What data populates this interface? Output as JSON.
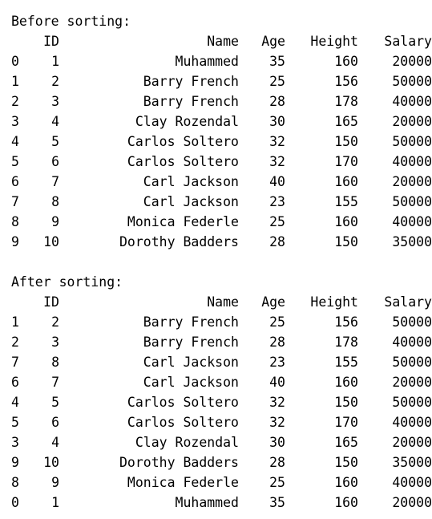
{
  "before": {
    "caption": "Before sorting:",
    "columns": {
      "id": "ID",
      "name": "Name",
      "age": "Age",
      "height": "Height",
      "salary": "Salary"
    },
    "rows": [
      {
        "idx": "0",
        "id": "1",
        "name": "Muhammed",
        "age": "35",
        "height": "160",
        "salary": "20000"
      },
      {
        "idx": "1",
        "id": "2",
        "name": "Barry French",
        "age": "25",
        "height": "156",
        "salary": "50000"
      },
      {
        "idx": "2",
        "id": "3",
        "name": "Barry French",
        "age": "28",
        "height": "178",
        "salary": "40000"
      },
      {
        "idx": "3",
        "id": "4",
        "name": "Clay Rozendal",
        "age": "30",
        "height": "165",
        "salary": "20000"
      },
      {
        "idx": "4",
        "id": "5",
        "name": "Carlos Soltero",
        "age": "32",
        "height": "150",
        "salary": "50000"
      },
      {
        "idx": "5",
        "id": "6",
        "name": "Carlos Soltero",
        "age": "32",
        "height": "170",
        "salary": "40000"
      },
      {
        "idx": "6",
        "id": "7",
        "name": "Carl Jackson",
        "age": "40",
        "height": "160",
        "salary": "20000"
      },
      {
        "idx": "7",
        "id": "8",
        "name": "Carl Jackson",
        "age": "23",
        "height": "155",
        "salary": "50000"
      },
      {
        "idx": "8",
        "id": "9",
        "name": "Monica Federle",
        "age": "25",
        "height": "160",
        "salary": "40000"
      },
      {
        "idx": "9",
        "id": "10",
        "name": "Dorothy Badders",
        "age": "28",
        "height": "150",
        "salary": "35000"
      }
    ]
  },
  "after": {
    "caption": "After sorting:",
    "columns": {
      "id": "ID",
      "name": "Name",
      "age": "Age",
      "height": "Height",
      "salary": "Salary"
    },
    "rows": [
      {
        "idx": "1",
        "id": "2",
        "name": "Barry French",
        "age": "25",
        "height": "156",
        "salary": "50000"
      },
      {
        "idx": "2",
        "id": "3",
        "name": "Barry French",
        "age": "28",
        "height": "178",
        "salary": "40000"
      },
      {
        "idx": "7",
        "id": "8",
        "name": "Carl Jackson",
        "age": "23",
        "height": "155",
        "salary": "50000"
      },
      {
        "idx": "6",
        "id": "7",
        "name": "Carl Jackson",
        "age": "40",
        "height": "160",
        "salary": "20000"
      },
      {
        "idx": "4",
        "id": "5",
        "name": "Carlos Soltero",
        "age": "32",
        "height": "150",
        "salary": "50000"
      },
      {
        "idx": "5",
        "id": "6",
        "name": "Carlos Soltero",
        "age": "32",
        "height": "170",
        "salary": "40000"
      },
      {
        "idx": "3",
        "id": "4",
        "name": "Clay Rozendal",
        "age": "30",
        "height": "165",
        "salary": "20000"
      },
      {
        "idx": "9",
        "id": "10",
        "name": "Dorothy Badders",
        "age": "28",
        "height": "150",
        "salary": "35000"
      },
      {
        "idx": "8",
        "id": "9",
        "name": "Monica Federle",
        "age": "25",
        "height": "160",
        "salary": "40000"
      },
      {
        "idx": "0",
        "id": "1",
        "name": "Muhammed",
        "age": "35",
        "height": "160",
        "salary": "20000"
      }
    ]
  }
}
